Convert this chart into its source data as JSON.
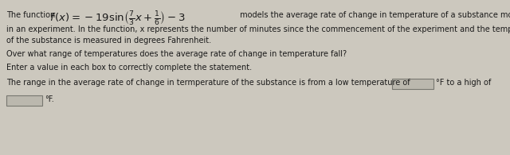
{
  "bg_color": "#ccc8be",
  "text_color": "#1a1a1a",
  "font_size_body": 7.0,
  "font_size_math": 9.5,
  "figsize": [
    6.4,
    1.95
  ],
  "dpi": 100,
  "lines": [
    "in an experiment. In the function, x represents the number of minutes since the commencement of the experiment and the temperature",
    "of the substance is measured in degrees Fahrenheit.",
    "Over what range of temperatures does the average rate of change in temperature fall?",
    "Enter a value in each box to correctly complete the statement.",
    "The range in the average rate of change in termperature of the substance is from a low temperature of"
  ],
  "line1_pre": "The function ",
  "line1_math": "$f\\,(x) = -19\\sin\\!\\left(\\frac{7}{3}x + \\frac{1}{6}\\right) - 3$",
  "line1_post": " models the average rate of change in temperature of a substance monitored",
  "box_facecolor": "#bbb8ae",
  "box_edgecolor": "#777770",
  "suffix1": "°F to a high of",
  "suffix2": "°F."
}
